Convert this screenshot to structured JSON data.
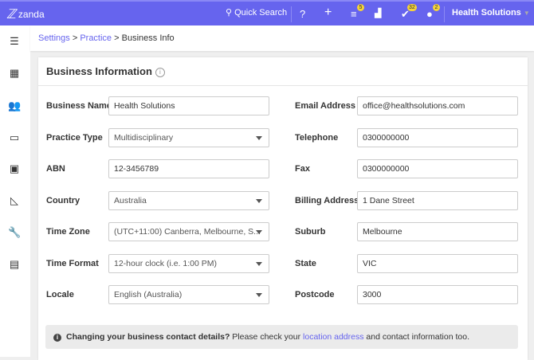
{
  "app": {
    "logo": "zanda",
    "search_label": "Quick Search",
    "account": "Health Solutions",
    "badges": {
      "tasks": "5",
      "checks": "32",
      "messages": "2"
    },
    "accent": "#6664ee"
  },
  "sidebar": [
    "menu-icon",
    "calendar-icon",
    "clients-icon",
    "id-card-icon",
    "reports-icon",
    "analytics-icon",
    "settings-wrench-icon",
    "document-icon"
  ],
  "breadcrumb": {
    "settings": "Settings",
    "practice": "Practice",
    "current": "Business Info",
    "sep": ">"
  },
  "card": {
    "title": "Business Information",
    "left": [
      {
        "label": "Business Name",
        "value": "Health Solutions",
        "type": "text"
      },
      {
        "label": "Practice Type",
        "value": "Multidisciplinary",
        "type": "select"
      },
      {
        "label": "ABN",
        "value": "12-3456789",
        "type": "text"
      },
      {
        "label": "Country",
        "value": "Australia",
        "type": "select"
      },
      {
        "label": "Time Zone",
        "value": "(UTC+11:00) Canberra, Melbourne, S...",
        "type": "select"
      },
      {
        "label": "Time Format",
        "value": "12-hour clock (i.e. 1:00 PM)",
        "type": "select"
      },
      {
        "label": "Locale",
        "value": "English (Australia)",
        "type": "select"
      }
    ],
    "right": [
      {
        "label": "Email Address",
        "value": "office@healthsolutions.com"
      },
      {
        "label": "Telephone",
        "value": "0300000000"
      },
      {
        "label": "Fax",
        "value": "0300000000"
      },
      {
        "label": "Billing Address",
        "value": "1 Dane Street"
      },
      {
        "label": "Suburb",
        "value": "Melbourne"
      },
      {
        "label": "State",
        "value": "VIC"
      },
      {
        "label": "Postcode",
        "value": "3000"
      }
    ]
  },
  "info": {
    "bold": "Changing your business contact details?",
    "text1": "Please check your",
    "link": "location address",
    "text2": "and contact information too."
  }
}
